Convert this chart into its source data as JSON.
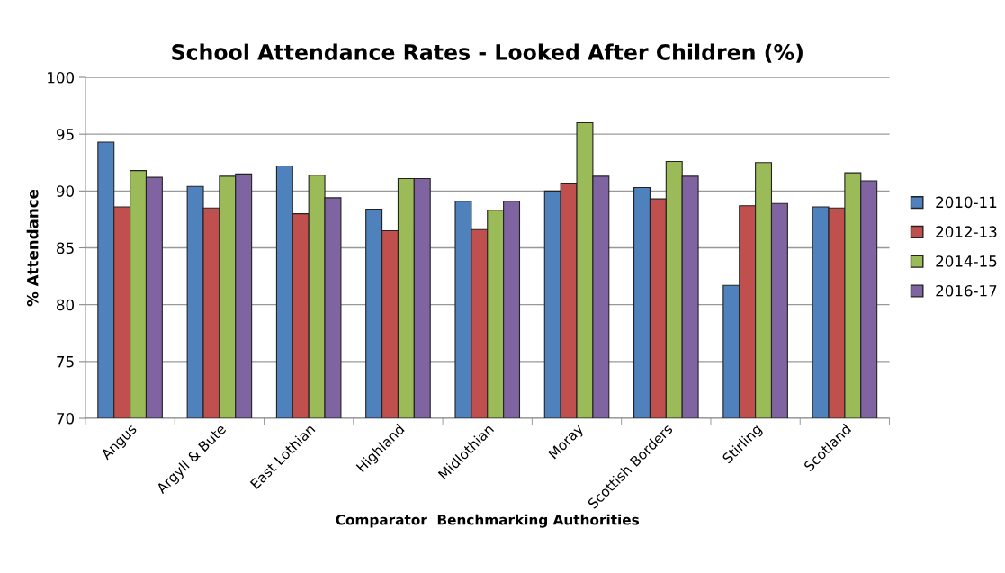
{
  "chart_data": {
    "type": "bar",
    "title": "School Attendance Rates - Looked After Children (%)",
    "xlabel": "Comparator  Benchmarking Authorities",
    "ylabel": "% Attendance",
    "categories": [
      "Angus",
      "Argyll & Bute",
      "East Lothian",
      "Highland",
      "Midlothian",
      "Moray",
      "Scottish Borders",
      "Stirling",
      "Scotland"
    ],
    "series": [
      {
        "name": "2010-11",
        "color": "#4f81bd",
        "values": [
          94.3,
          90.4,
          92.2,
          88.4,
          89.1,
          90.0,
          90.3,
          81.7,
          88.6
        ]
      },
      {
        "name": "2012-13",
        "color": "#c0504d",
        "values": [
          88.6,
          88.5,
          88.0,
          86.5,
          86.6,
          90.7,
          89.3,
          88.7,
          88.5
        ]
      },
      {
        "name": "2014-15",
        "color": "#9bbb59",
        "values": [
          91.8,
          91.3,
          91.4,
          91.1,
          88.3,
          96.0,
          92.6,
          92.5,
          91.6
        ]
      },
      {
        "name": "2016-17",
        "color": "#8064a2",
        "values": [
          91.2,
          91.5,
          89.4,
          91.1,
          89.1,
          91.3,
          91.3,
          88.9,
          90.9
        ]
      }
    ],
    "ylim": [
      70,
      100
    ],
    "yticks": [
      70,
      75,
      80,
      85,
      90,
      95,
      100
    ],
    "grid": "y",
    "legend": "right"
  }
}
